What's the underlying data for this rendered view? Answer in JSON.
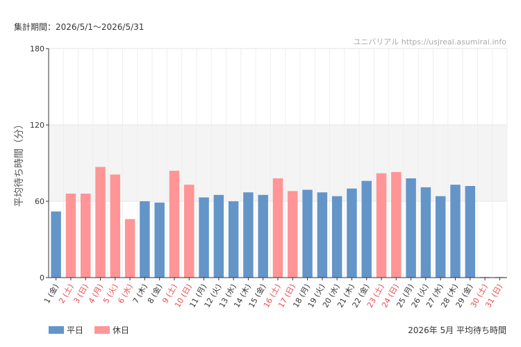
{
  "header": {
    "period_label": "集計期間：2026/5/1〜2026/5/31",
    "watermark": "ユニバリアル  https://usjreal.asumirai.info"
  },
  "legend": {
    "weekday_label": "平日",
    "holiday_label": "休日",
    "chart_caption": "2026年 5月 平均待ち時間"
  },
  "colors": {
    "weekday": "#6495c8",
    "holiday": "#ff9596",
    "band": "#f4f4f4",
    "grid": "#e6e6e6",
    "holiday_text": "#e8494b"
  },
  "chart_data": {
    "type": "bar",
    "ylabel": "平均待ち時間（分）",
    "ylim": [
      0,
      180
    ],
    "yticks": [
      0,
      60,
      120,
      180
    ],
    "band": [
      60,
      120
    ],
    "categories": [
      "1 (金)",
      "2 (土)",
      "3 (日)",
      "4 (月)",
      "5 (火)",
      "6 (水)",
      "7 (木)",
      "8 (金)",
      "9 (土)",
      "10 (日)",
      "11 (月)",
      "12 (火)",
      "13 (水)",
      "14 (木)",
      "15 (金)",
      "16 (土)",
      "17 (日)",
      "18 (月)",
      "19 (火)",
      "20 (水)",
      "21 (木)",
      "22 (金)",
      "23 (土)",
      "24 (日)",
      "25 (月)",
      "26 (火)",
      "27 (水)",
      "28 (木)",
      "29 (金)",
      "30 (土)",
      "31 (日)"
    ],
    "values": [
      52,
      66,
      66,
      87,
      81,
      46,
      60,
      59,
      84,
      73,
      63,
      65,
      60,
      67,
      65,
      78,
      68,
      69,
      67,
      64,
      70,
      76,
      82,
      83,
      78,
      71,
      64,
      73,
      72,
      0,
      0
    ],
    "holiday": [
      false,
      true,
      true,
      true,
      true,
      true,
      false,
      false,
      true,
      true,
      false,
      false,
      false,
      false,
      false,
      true,
      true,
      false,
      false,
      false,
      false,
      false,
      true,
      true,
      false,
      false,
      false,
      false,
      false,
      true,
      true
    ]
  }
}
